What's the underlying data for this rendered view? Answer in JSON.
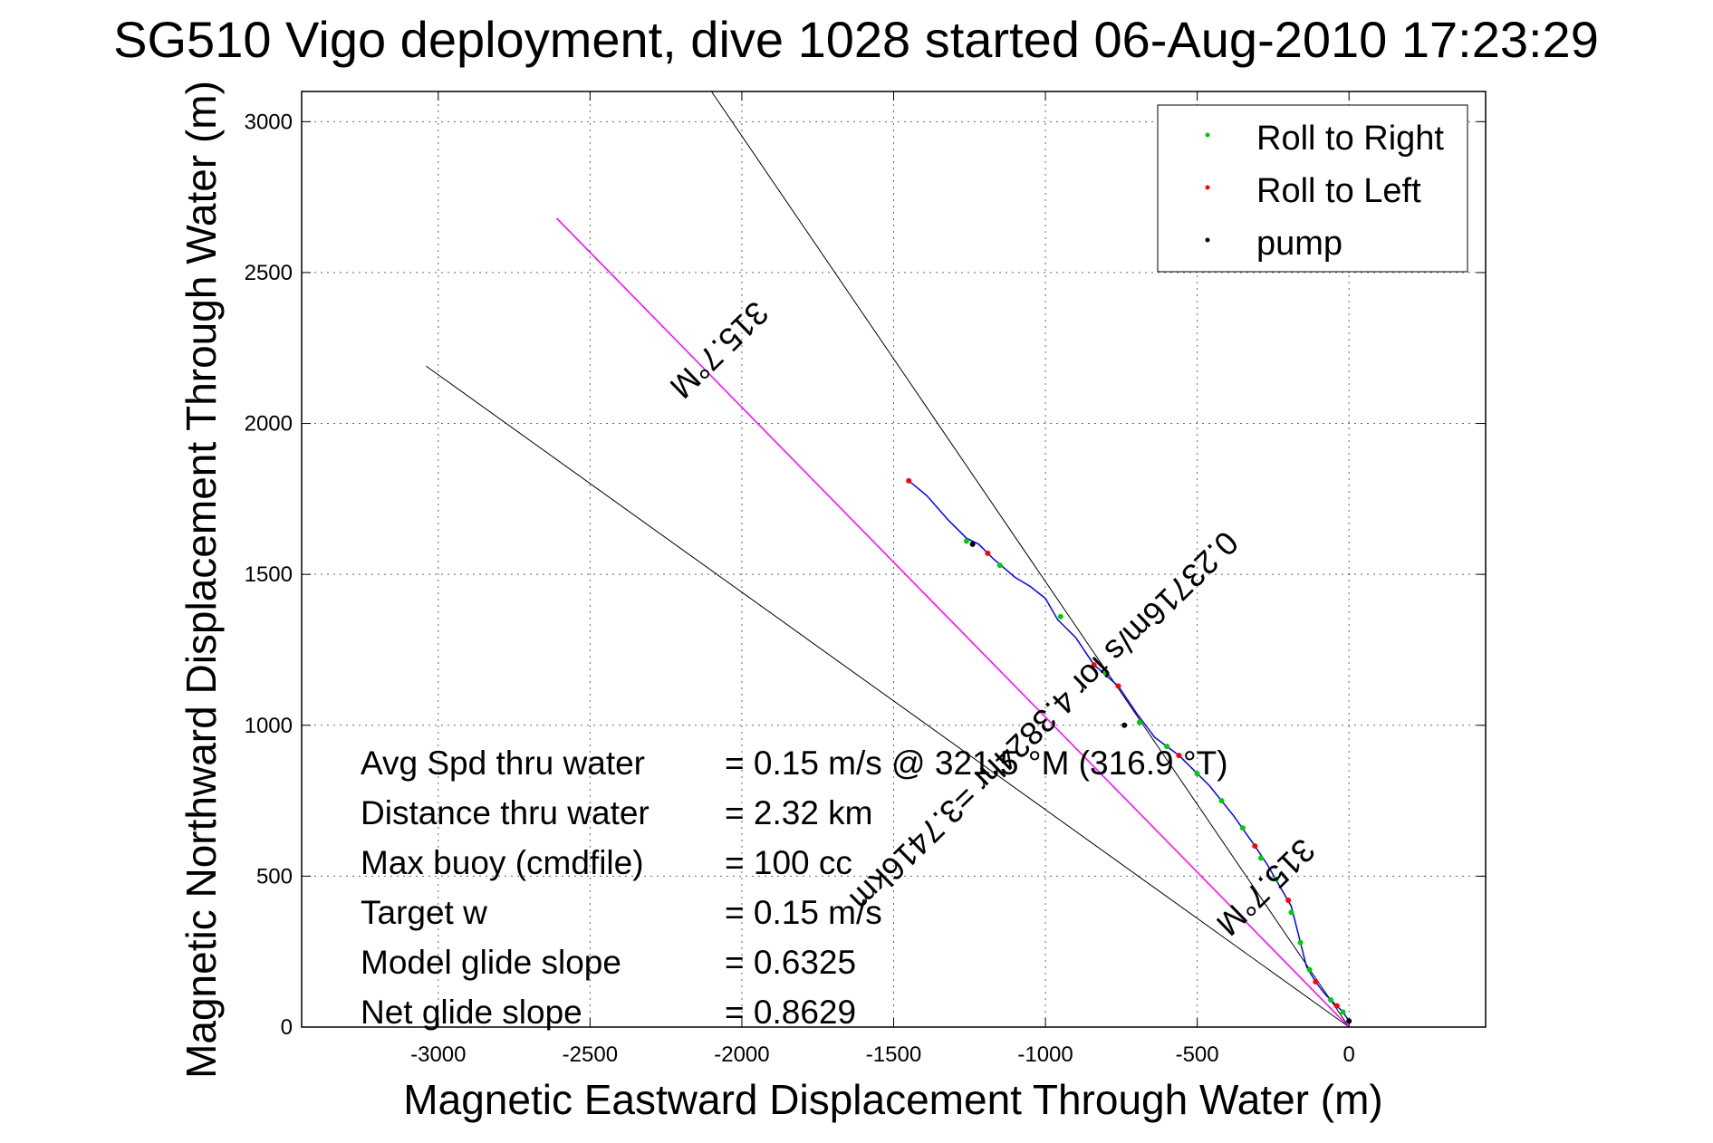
{
  "chart_data": {
    "type": "scatter",
    "title": "SG510 Vigo deployment, dive 1028 started 06-Aug-2010 17:23:29",
    "xlabel": "Magnetic Eastward Displacement Through Water (m)",
    "ylabel": "Magnetic Northward Displacement Through Water (m)",
    "xlim": [
      -3450,
      450
    ],
    "ylim": [
      0,
      3100
    ],
    "xticks": [
      -3000,
      -2500,
      -2000,
      -1500,
      -1000,
      -500,
      0
    ],
    "yticks": [
      0,
      500,
      1000,
      1500,
      2000,
      2500,
      3000
    ],
    "grid": true,
    "legend_position": "top-right",
    "legend": [
      {
        "label": "Roll to Right",
        "color": "#00cc00"
      },
      {
        "label": "Roll to Left",
        "color": "#ff0000"
      },
      {
        "label": "pump",
        "color": "#000000"
      }
    ],
    "colors": {
      "track": "#0000ff",
      "heading_line": "#ff00ff",
      "reference_line": "#000000",
      "roll_right": "#00cc00",
      "roll_left": "#ff0000",
      "pump": "#000000"
    },
    "reference_lines": [
      {
        "from": [
          0,
          0
        ],
        "to": [
          -2100,
          3100
        ]
      },
      {
        "from": [
          0,
          0
        ],
        "to": [
          -3040,
          2190
        ]
      }
    ],
    "heading_line": {
      "from": [
        0,
        0
      ],
      "to": [
        -2610,
        2680
      ]
    },
    "track": [
      [
        0,
        20
      ],
      [
        -20,
        50
      ],
      [
        -50,
        80
      ],
      [
        -80,
        110
      ],
      [
        -110,
        150
      ],
      [
        -140,
        200
      ],
      [
        -165,
        300
      ],
      [
        -190,
        400
      ],
      [
        -230,
        470
      ],
      [
        -270,
        540
      ],
      [
        -310,
        600
      ],
      [
        -380,
        700
      ],
      [
        -460,
        800
      ],
      [
        -560,
        900
      ],
      [
        -640,
        960
      ],
      [
        -700,
        1040
      ],
      [
        -760,
        1130
      ],
      [
        -840,
        1200
      ],
      [
        -900,
        1290
      ],
      [
        -960,
        1350
      ],
      [
        -1000,
        1420
      ],
      [
        -1050,
        1460
      ],
      [
        -1100,
        1490
      ],
      [
        -1170,
        1550
      ],
      [
        -1220,
        1600
      ],
      [
        -1260,
        1620
      ],
      [
        -1320,
        1680
      ],
      [
        -1390,
        1760
      ],
      [
        -1450,
        1810
      ]
    ],
    "roll_right_points": [
      [
        -20,
        50
      ],
      [
        -60,
        90
      ],
      [
        -130,
        190
      ],
      [
        -160,
        280
      ],
      [
        -190,
        380
      ],
      [
        -240,
        490
      ],
      [
        -290,
        560
      ],
      [
        -350,
        660
      ],
      [
        -420,
        750
      ],
      [
        -500,
        840
      ],
      [
        -600,
        930
      ],
      [
        -690,
        1010
      ],
      [
        -800,
        1170
      ],
      [
        -950,
        1360
      ],
      [
        -1150,
        1530
      ],
      [
        -1260,
        1610
      ]
    ],
    "roll_left_points": [
      [
        -40,
        70
      ],
      [
        -110,
        150
      ],
      [
        -200,
        420
      ],
      [
        -310,
        600
      ],
      [
        -560,
        900
      ],
      [
        -760,
        1130
      ],
      [
        -840,
        1200
      ],
      [
        -1190,
        1570
      ],
      [
        -1450,
        1810
      ]
    ],
    "pump_points": [
      [
        0,
        20
      ],
      [
        -740,
        1000
      ],
      [
        -1240,
        1600
      ]
    ],
    "annotations": [
      {
        "text": "315.7°M",
        "at": [
          -2100,
          2270
        ],
        "angle_deg": -44.3
      },
      {
        "text": "0.23716m/s for 4.3824hr =3.7416km",
        "at": [
          -1030,
          1040
        ],
        "angle_deg": -44.3
      },
      {
        "text": "315.7°M",
        "at": [
          -300,
          490
        ],
        "angle_deg": -44.3
      }
    ],
    "stats": [
      {
        "label": "Avg Spd thru water",
        "value": "=  0.15 m/s @ 321.5 °M (316.9 °T)"
      },
      {
        "label": "Distance thru water",
        "value": "=  2.32 km"
      },
      {
        "label": "Max buoy (cmdfile)",
        "value": "= 100 cc"
      },
      {
        "label": "Target w",
        "value": "= 0.15 m/s"
      },
      {
        "label": "Model glide slope",
        "value": "= 0.6325"
      },
      {
        "label": "Net glide slope",
        "value": "= 0.8629"
      }
    ]
  }
}
